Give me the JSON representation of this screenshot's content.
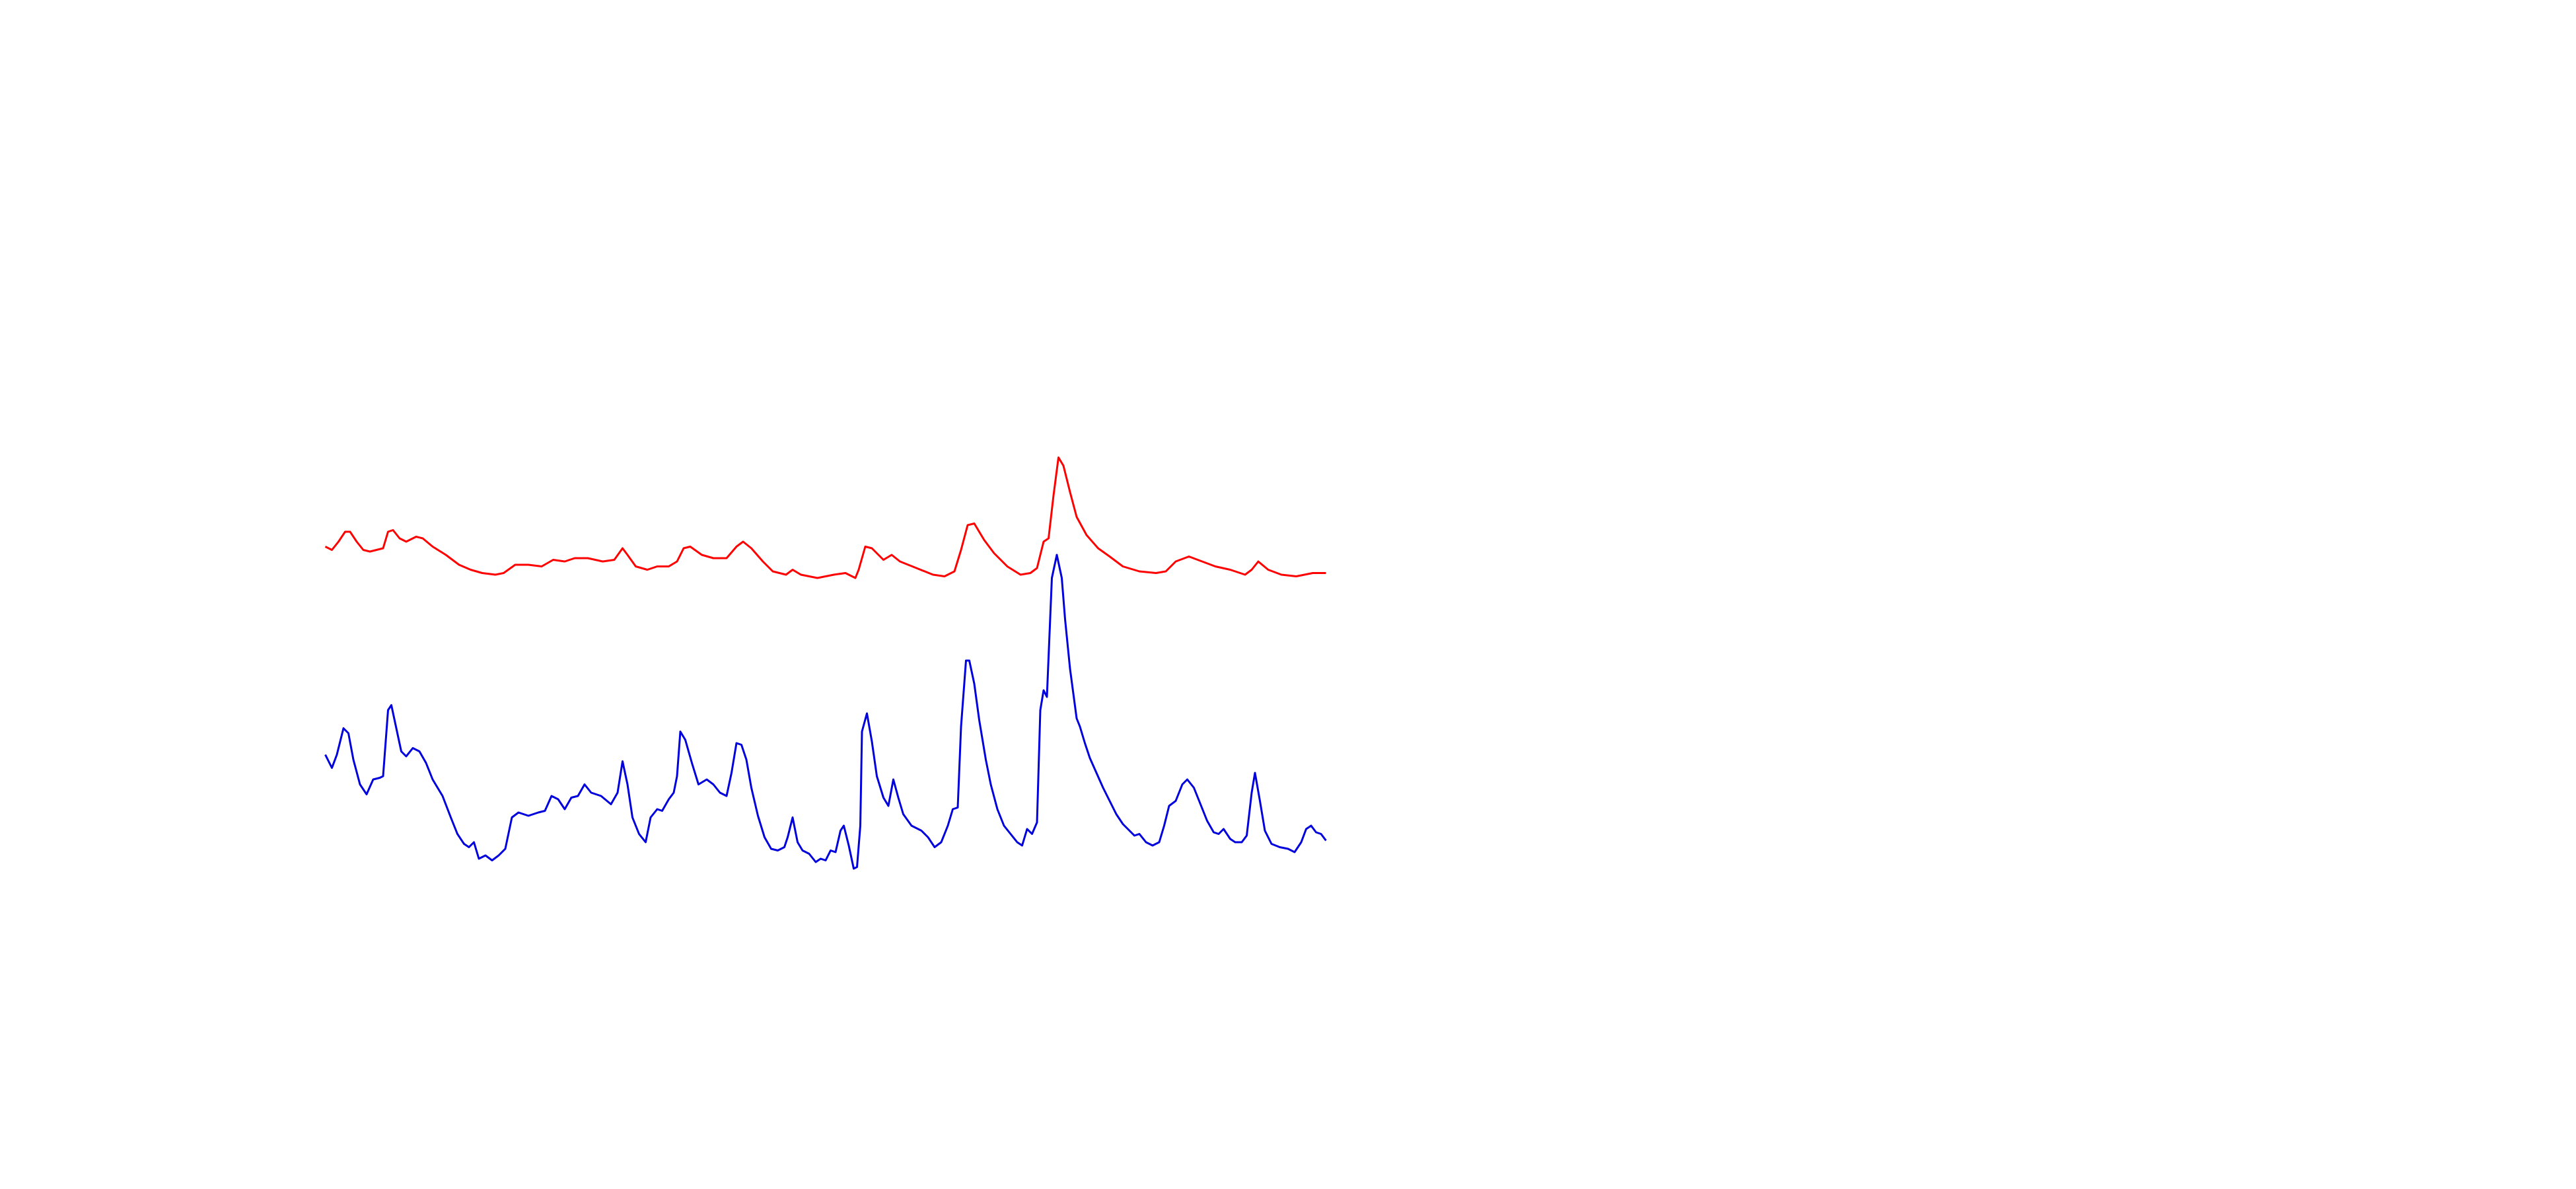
{
  "chart_data": {
    "type": "line",
    "xlim": [
      0,
      1560
    ],
    "ylim": [
      720,
      0
    ],
    "series": [
      {
        "color": "#ff0000",
        "x": [
          197,
          201,
          205,
          209,
          212,
          216,
          220,
          224,
          232,
          235,
          238,
          242,
          246,
          252,
          256,
          262,
          270,
          278,
          285,
          292,
          300,
          305,
          312,
          320,
          328,
          335,
          342,
          348,
          356,
          365,
          372,
          377,
          380,
          385,
          392,
          398,
          405,
          410,
          414,
          418,
          425,
          432,
          440,
          446,
          450,
          455,
          462,
          468,
          476,
          480,
          485,
          495,
          505,
          512,
          518,
          520,
          524,
          528,
          535,
          540,
          545,
          555,
          565,
          572,
          578,
          582,
          586,
          590,
          596,
          602,
          610,
          618,
          624,
          628,
          632,
          635,
          638,
          641,
          644,
          648,
          652,
          658,
          665,
          672,
          680,
          690,
          700,
          706,
          712,
          720,
          728,
          736,
          745,
          754,
          758,
          762,
          768,
          776,
          785,
          795,
          803
        ],
        "values": [
          331,
          333,
          328,
          322,
          322,
          328,
          333,
          334,
          332,
          322,
          321,
          326,
          328,
          325,
          326,
          331,
          336,
          342,
          345,
          347,
          348,
          347,
          342,
          342,
          343,
          339,
          340,
          338,
          338,
          340,
          339,
          332,
          336,
          343,
          345,
          343,
          343,
          340,
          332,
          331,
          336,
          338,
          338,
          331,
          328,
          332,
          340,
          346,
          348,
          345,
          348,
          350,
          348,
          347,
          350,
          345,
          331,
          332,
          339,
          336,
          340,
          344,
          348,
          349,
          346,
          333,
          318,
          317,
          327,
          335,
          343,
          348,
          347,
          344,
          328,
          326,
          300,
          277,
          282,
          298,
          313,
          324,
          332,
          337,
          343,
          346,
          347,
          346,
          340,
          337,
          340,
          343,
          345,
          348,
          345,
          340,
          345,
          348,
          349,
          347,
          347
        ]
      },
      {
        "color": "#0000dd",
        "x": [
          197,
          201,
          204,
          208,
          211,
          214,
          218,
          222,
          226,
          230,
          232,
          235,
          237,
          240,
          243,
          246,
          250,
          254,
          258,
          262,
          268,
          273,
          277,
          281,
          284,
          287,
          290,
          294,
          298,
          302,
          306,
          310,
          314,
          320,
          326,
          330,
          334,
          338,
          342,
          346,
          350,
          354,
          358,
          364,
          370,
          374,
          377,
          380,
          383,
          387,
          391,
          394,
          398,
          401,
          405,
          408,
          410,
          412,
          415,
          419,
          423,
          428,
          432,
          436,
          440,
          443,
          446,
          449,
          452,
          455,
          459,
          463,
          467,
          471,
          475,
          477,
          480,
          483,
          486,
          490,
          494,
          497,
          500,
          503,
          506,
          509,
          511,
          514,
          517,
          519,
          521,
          522,
          525,
          528,
          531,
          535,
          538,
          541,
          544,
          547,
          552,
          558,
          562,
          566,
          570,
          574,
          577,
          580,
          582,
          585,
          587,
          590,
          593,
          597,
          600,
          604,
          608,
          612,
          616,
          619,
          622,
          625,
          628,
          630,
          632,
          634,
          637,
          640,
          643,
          645,
          648,
          652,
          654,
          657,
          660,
          664,
          668,
          672,
          676,
          680,
          684,
          687,
          690,
          694,
          698,
          702,
          705,
          708,
          712,
          716,
          719,
          723,
          727,
          731,
          735,
          738,
          741,
          745,
          748,
          752,
          755,
          758,
          760,
          763,
          766,
          770,
          775,
          780,
          784,
          788,
          791,
          794,
          797,
          800,
          803
        ],
        "values": [
          457,
          465,
          457,
          441,
          444,
          460,
          475,
          481,
          472,
          471,
          470,
          430,
          427,
          441,
          455,
          458,
          453,
          455,
          462,
          472,
          482,
          495,
          505,
          511,
          513,
          510,
          520,
          518,
          521,
          518,
          514,
          495,
          492,
          494,
          492,
          491,
          482,
          484,
          490,
          483,
          482,
          475,
          480,
          482,
          487,
          480,
          461,
          475,
          495,
          505,
          510,
          495,
          490,
          491,
          484,
          480,
          470,
          443,
          448,
          462,
          475,
          472,
          475,
          480,
          482,
          468,
          450,
          451,
          460,
          477,
          494,
          507,
          514,
          515,
          513,
          507,
          495,
          510,
          515,
          517,
          522,
          520,
          521,
          515,
          516,
          503,
          500,
          512,
          526,
          525,
          500,
          443,
          432,
          449,
          470,
          483,
          488,
          472,
          483,
          493,
          500,
          503,
          507,
          513,
          510,
          500,
          490,
          489,
          440,
          400,
          400,
          414,
          436,
          460,
          475,
          490,
          500,
          505,
          510,
          512,
          502,
          505,
          498,
          430,
          418,
          422,
          350,
          336,
          350,
          375,
          405,
          435,
          440,
          450,
          459,
          468,
          477,
          485,
          493,
          499,
          503,
          506,
          505,
          510,
          512,
          510,
          500,
          488,
          485,
          475,
          472,
          477,
          487,
          497,
          504,
          505,
          502,
          508,
          510,
          510,
          506,
          480,
          468,
          485,
          503,
          511,
          513,
          514,
          516,
          510,
          502,
          500,
          504,
          505,
          509
        ]
      }
    ]
  }
}
